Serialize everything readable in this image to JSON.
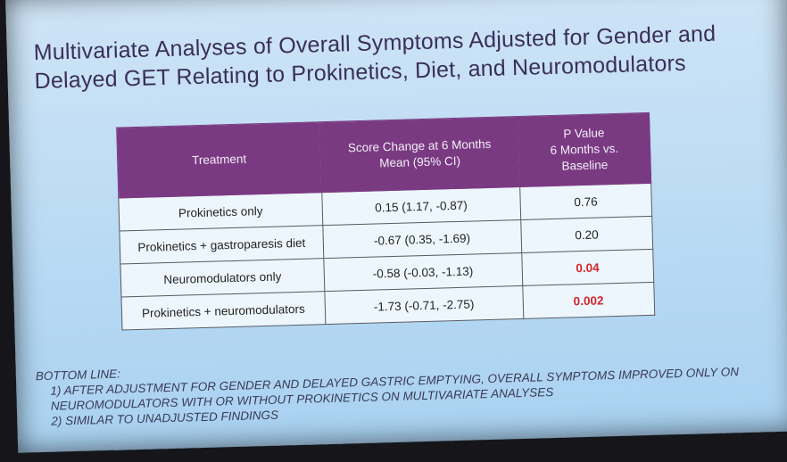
{
  "title": {
    "line1": "Multivariate Analyses of Overall Symptoms Adjusted for Gender and",
    "line2": "Delayed GET Relating to Prokinetics, Diet, and Neuromodulators"
  },
  "table": {
    "headers": [
      "Treatment",
      "Score Change at 6 Months\nMean (95% CI)",
      "P Value\n6 Months vs.\nBaseline"
    ],
    "rows": [
      {
        "treatment": "Prokinetics only",
        "score_change": "0.15 (1.17, -0.87)",
        "p_value": "0.76",
        "significant": false
      },
      {
        "treatment": "Prokinetics + gastroparesis diet",
        "score_change": "-0.67 (0.35, -1.69)",
        "p_value": "0.20",
        "significant": false
      },
      {
        "treatment": "Neuromodulators only",
        "score_change": "-0.58 (-0.03, -1.13)",
        "p_value": "0.04",
        "significant": true
      },
      {
        "treatment": "Prokinetics + neuromodulators",
        "score_change": "-1.73 (-0.71, -2.75)",
        "p_value": "0.002",
        "significant": true
      }
    ]
  },
  "bottom_line": {
    "heading": "BOTTOM LINE:",
    "point1_a": "1) AFTER ADJUSTMENT FOR GENDER AND DELAYED GASTRIC EMPTYING, OVERALL SYMPTOMS IMPROVED ONLY ON",
    "point1_b": "NEUROMODULATORS WITH OR WITHOUT PROKINETICS ON MULTIVARIATE ANALYSES",
    "point2": "2) SIMILAR TO UNADJUSTED FINDINGS"
  },
  "colors": {
    "header_purple": "#7a3a82",
    "significant_red": "#d0262c",
    "title_color": "#3a2f5a"
  }
}
